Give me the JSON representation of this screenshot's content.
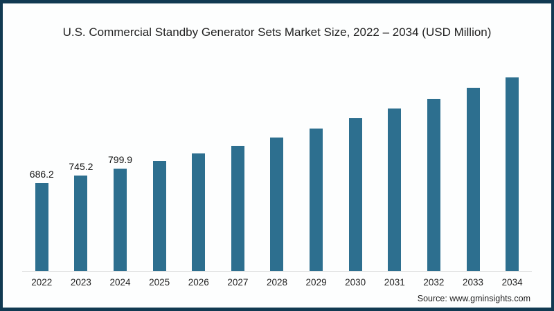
{
  "window": {
    "border_color": "#113a52",
    "background_color": "#fdfefe"
  },
  "chart_data": {
    "type": "bar",
    "title": "U.S. Commercial Standby Generator Sets Market Size, 2022 – 2034 (USD Million)",
    "categories": [
      "2022",
      "2023",
      "2024",
      "2025",
      "2026",
      "2027",
      "2028",
      "2029",
      "2030",
      "2031",
      "2032",
      "2033",
      "2034"
    ],
    "values": [
      686.2,
      745.2,
      799.9,
      860,
      915,
      975,
      1040,
      1110,
      1190,
      1265,
      1345,
      1430,
      1510
    ],
    "data_labels": [
      "686.2",
      "745.2",
      "799.9",
      "",
      "",
      "",
      "",
      "",
      "",
      "",
      "",
      "",
      ""
    ],
    "xlabel": "",
    "ylabel": "",
    "ylim": [
      0,
      1580
    ],
    "grid": false,
    "legend": false,
    "bar_color": "#2d6f8f",
    "axis_line_color": "#d9d9d9"
  },
  "footer": {
    "source": "Source: www.gminsights.com"
  }
}
